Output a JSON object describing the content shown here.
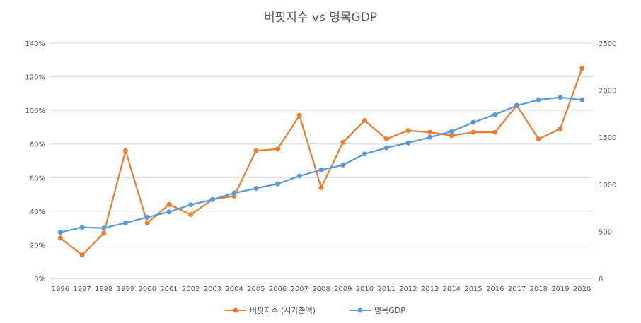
{
  "chart_data": {
    "type": "line",
    "title": "버핏지수 vs 명목GDP",
    "categories": [
      "1996",
      "1997",
      "1998",
      "1999",
      "2000",
      "2001",
      "2002",
      "2003",
      "2004",
      "2005",
      "2006",
      "2007",
      "2008",
      "2009",
      "2010",
      "2011",
      "2012",
      "2013",
      "2014",
      "2015",
      "2016",
      "2017",
      "2018",
      "2019",
      "2020"
    ],
    "y_left": {
      "ylim": [
        0,
        140
      ],
      "ticks": [
        0,
        20,
        40,
        60,
        80,
        100,
        120,
        140
      ],
      "tick_labels": [
        "0%",
        "20%",
        "40%",
        "60%",
        "80%",
        "100%",
        "120%",
        "140%"
      ]
    },
    "y_right": {
      "ylim": [
        0,
        2500
      ],
      "ticks": [
        0,
        500,
        1000,
        1500,
        2000,
        2500
      ],
      "tick_labels": [
        "0",
        "500",
        "1000",
        "1500",
        "2000",
        "2500"
      ]
    },
    "series": [
      {
        "name": "버핏지수 (시가총액)",
        "axis": "left",
        "color": "#ED7D31",
        "values": [
          24,
          14,
          27,
          76,
          33,
          44,
          38,
          47,
          49,
          76,
          77,
          97,
          54,
          81,
          94,
          83,
          88,
          87,
          85,
          87,
          87,
          103,
          83,
          89,
          125
        ]
      },
      {
        "name": "명목GDP",
        "axis": "right",
        "color": "#5B9BD5",
        "values": [
          490,
          543,
          535,
          591,
          651,
          707,
          784,
          837,
          908,
          957,
          1005,
          1089,
          1154,
          1205,
          1323,
          1389,
          1440,
          1500,
          1562,
          1658,
          1741,
          1836,
          1898,
          1924,
          1898
        ]
      }
    ],
    "grid": true,
    "legend": "bottom"
  }
}
